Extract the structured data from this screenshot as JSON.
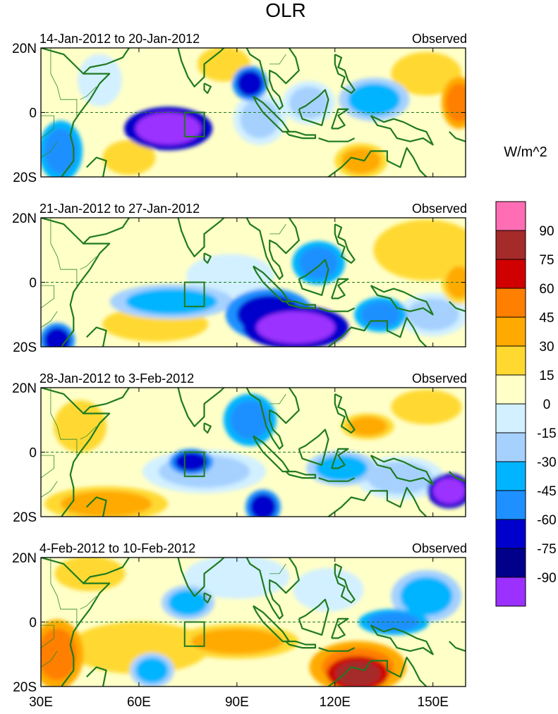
{
  "chart_data": {
    "type": "heatmap",
    "title": "OLR",
    "units_label": "W/m^2",
    "lon_range": [
      30,
      160
    ],
    "lat_range": [
      -20,
      20
    ],
    "x_ticks": [
      "30E",
      "60E",
      "90E",
      "120E",
      "150E"
    ],
    "x_tick_values": [
      30,
      60,
      90,
      120,
      150
    ],
    "y_ticks": [
      "20N",
      "0",
      "20S"
    ],
    "y_tick_values": [
      20,
      0,
      -20
    ],
    "box_region": {
      "lon": [
        74,
        80
      ],
      "lat": [
        -7.5,
        0
      ]
    },
    "colorbar": {
      "labels": [
        "90",
        "75",
        "60",
        "45",
        "30",
        "15",
        "0",
        "-15",
        "-30",
        "-45",
        "-60",
        "-75",
        "-90"
      ],
      "colors": [
        "#ff6eb4",
        "#a52a2a",
        "#d00000",
        "#ff7f00",
        "#ffaa00",
        "#ffd930",
        "#ffffc8",
        "#d2f0ff",
        "#a6d1ff",
        "#00b4ff",
        "#1e90ff",
        "#0000cd",
        "#00008b",
        "#9b30ff"
      ]
    },
    "panels": [
      {
        "period": "14-Jan-2012 to 20-Jan-2012",
        "label": "Observed",
        "anomalies": [
          {
            "lon": 69,
            "lat": -5,
            "rx": 10,
            "ry": 5,
            "value": -90
          },
          {
            "lon": 94,
            "lat": 9,
            "rx": 4,
            "ry": 4,
            "value": -75
          },
          {
            "lon": 36,
            "lat": -12,
            "rx": 5,
            "ry": 7,
            "value": -60
          },
          {
            "lon": 132,
            "lat": 4,
            "rx": 8,
            "ry": 5,
            "value": -45
          },
          {
            "lon": 112,
            "lat": 3,
            "rx": 6,
            "ry": 5,
            "value": -30
          },
          {
            "lon": 97,
            "lat": -2,
            "rx": 6,
            "ry": 6,
            "value": -30
          },
          {
            "lon": 48,
            "lat": 10,
            "rx": 5,
            "ry": 6,
            "value": -15
          },
          {
            "lon": 86,
            "lat": 15,
            "rx": 6,
            "ry": 4,
            "value": 15
          },
          {
            "lon": 57,
            "lat": -14,
            "rx": 6,
            "ry": 4,
            "value": 15
          },
          {
            "lon": 128,
            "lat": -15,
            "rx": 6,
            "ry": 4,
            "value": 30
          },
          {
            "lon": 158,
            "lat": 3,
            "rx": 4,
            "ry": 6,
            "value": 45
          },
          {
            "lon": 148,
            "lat": 12,
            "rx": 8,
            "ry": 5,
            "value": 15
          }
        ]
      },
      {
        "period": "21-Jan-2012 to 27-Jan-2012",
        "label": "Observed",
        "anomalies": [
          {
            "lon": 108,
            "lat": -14,
            "rx": 12,
            "ry": 5,
            "value": -90
          },
          {
            "lon": 100,
            "lat": -10,
            "rx": 10,
            "ry": 6,
            "value": -75
          },
          {
            "lon": 134,
            "lat": -10,
            "rx": 6,
            "ry": 4,
            "value": -60
          },
          {
            "lon": 115,
            "lat": 6,
            "rx": 6,
            "ry": 5,
            "value": -60
          },
          {
            "lon": 35,
            "lat": -18,
            "rx": 4,
            "ry": 4,
            "value": -75
          },
          {
            "lon": 70,
            "lat": -6,
            "rx": 14,
            "ry": 4,
            "value": -45
          },
          {
            "lon": 150,
            "lat": -10,
            "rx": 8,
            "ry": 5,
            "value": -30
          },
          {
            "lon": 88,
            "lat": 2,
            "rx": 10,
            "ry": 5,
            "value": -15
          },
          {
            "lon": 148,
            "lat": 10,
            "rx": 12,
            "ry": 7,
            "value": 15
          },
          {
            "lon": 65,
            "lat": -13,
            "rx": 12,
            "ry": 4,
            "value": 15
          },
          {
            "lon": 158,
            "lat": 0,
            "rx": 4,
            "ry": 5,
            "value": 30
          }
        ]
      },
      {
        "period": "28-Jan-2012 to 3-Feb-2012",
        "label": "Observed",
        "anomalies": [
          {
            "lon": 76,
            "lat": -3,
            "rx": 5,
            "ry": 3,
            "value": -75
          },
          {
            "lon": 155,
            "lat": -12,
            "rx": 5,
            "ry": 4,
            "value": -90
          },
          {
            "lon": 94,
            "lat": 10,
            "rx": 6,
            "ry": 6,
            "value": -60
          },
          {
            "lon": 98,
            "lat": -17,
            "rx": 4,
            "ry": 4,
            "value": -75
          },
          {
            "lon": 122,
            "lat": -5,
            "rx": 8,
            "ry": 4,
            "value": -45
          },
          {
            "lon": 80,
            "lat": -6,
            "rx": 14,
            "ry": 5,
            "value": -30
          },
          {
            "lon": 140,
            "lat": -8,
            "rx": 10,
            "ry": 5,
            "value": -30
          },
          {
            "lon": 130,
            "lat": 8,
            "rx": 6,
            "ry": 3,
            "value": 30
          },
          {
            "lon": 50,
            "lat": -16,
            "rx": 14,
            "ry": 4,
            "value": 30
          },
          {
            "lon": 42,
            "lat": 8,
            "rx": 6,
            "ry": 6,
            "value": 15
          },
          {
            "lon": 148,
            "lat": 14,
            "rx": 8,
            "ry": 4,
            "value": 15
          }
        ]
      },
      {
        "period": "4-Feb-2012 to 10-Feb-2012",
        "label": "Observed",
        "anomalies": [
          {
            "lon": 127,
            "lat": -16,
            "rx": 7,
            "ry": 4,
            "value": 75
          },
          {
            "lon": 127,
            "lat": -14,
            "rx": 11,
            "ry": 6,
            "value": 45
          },
          {
            "lon": 35,
            "lat": -10,
            "rx": 6,
            "ry": 8,
            "value": 45
          },
          {
            "lon": 90,
            "lat": -6,
            "rx": 14,
            "ry": 4,
            "value": 30
          },
          {
            "lon": 60,
            "lat": -8,
            "rx": 16,
            "ry": 6,
            "value": 15
          },
          {
            "lon": 138,
            "lat": 0,
            "rx": 8,
            "ry": 3,
            "value": -60
          },
          {
            "lon": 148,
            "lat": 8,
            "rx": 8,
            "ry": 6,
            "value": -45
          },
          {
            "lon": 75,
            "lat": 6,
            "rx": 6,
            "ry": 4,
            "value": -45
          },
          {
            "lon": 64,
            "lat": -15,
            "rx": 5,
            "ry": 4,
            "value": -45
          },
          {
            "lon": 118,
            "lat": 10,
            "rx": 8,
            "ry": 5,
            "value": -15
          },
          {
            "lon": 90,
            "lat": 14,
            "rx": 12,
            "ry": 5,
            "value": -15
          },
          {
            "lon": 45,
            "lat": 15,
            "rx": 8,
            "ry": 4,
            "value": 15
          }
        ]
      }
    ]
  }
}
